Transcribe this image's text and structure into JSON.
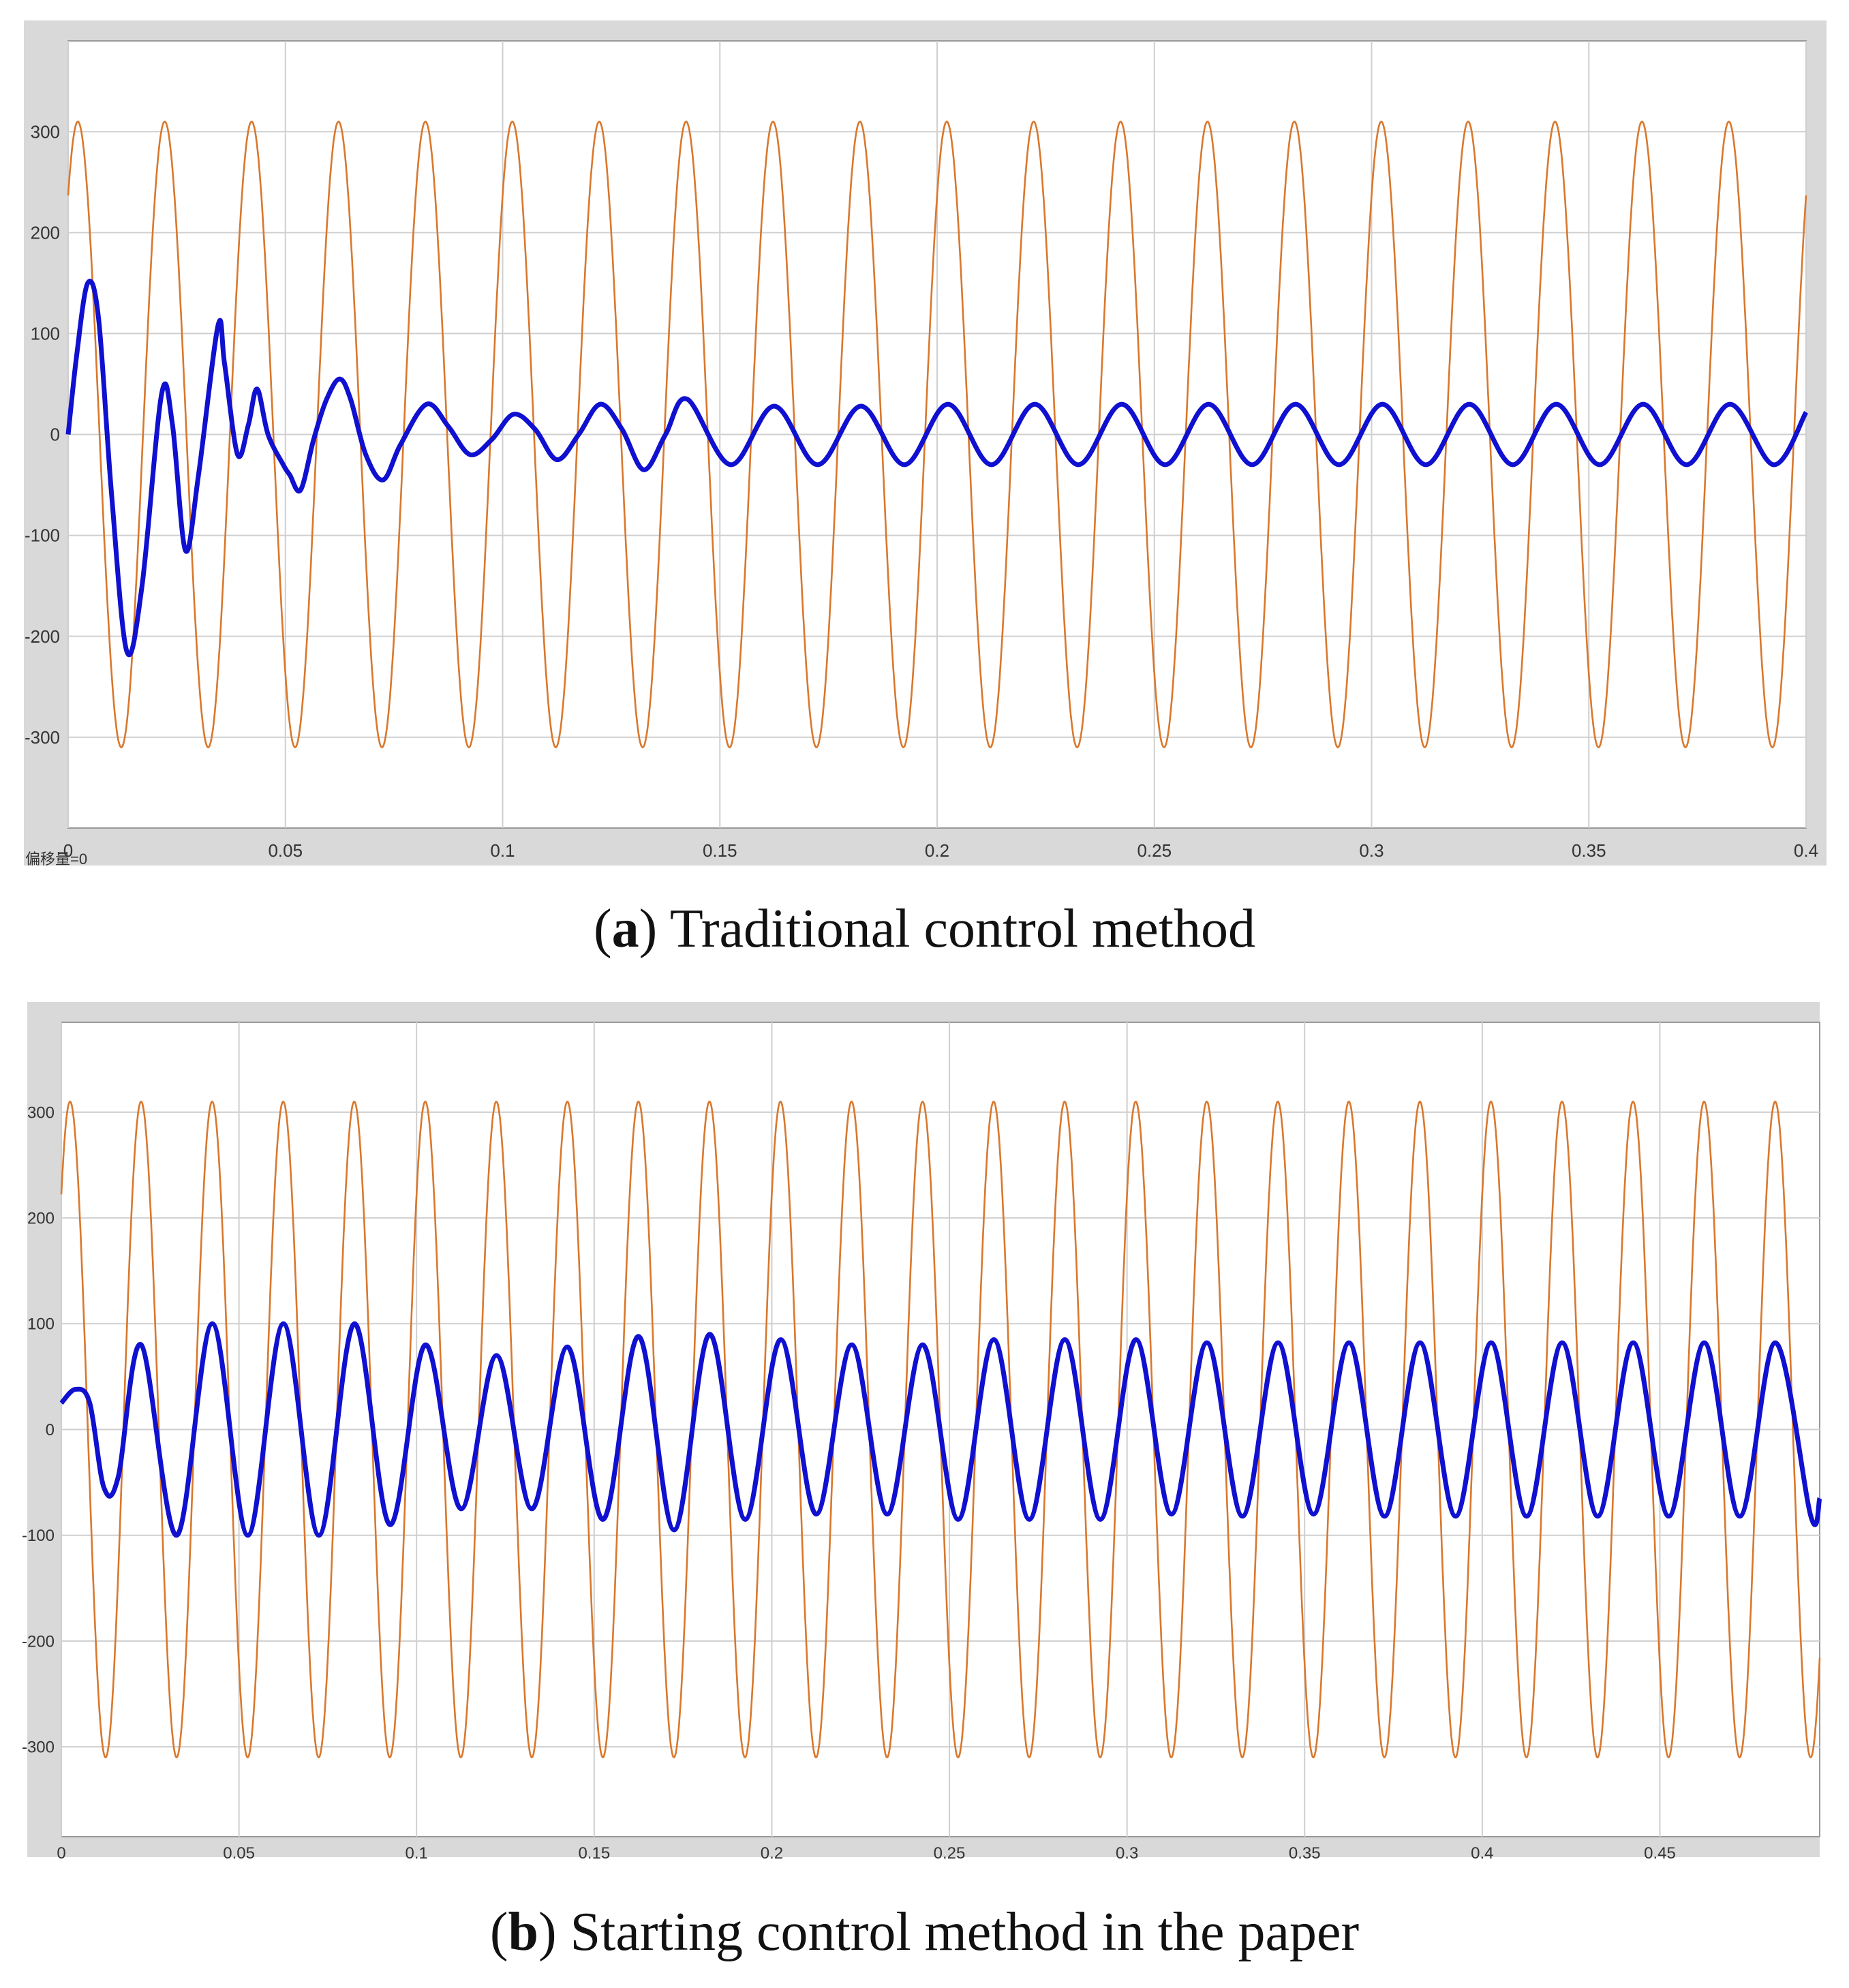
{
  "chart_data": [
    {
      "type": "line",
      "panel_label": "a",
      "caption": "Traditional control method",
      "corner_text": "偏移量=0",
      "xlim": [
        0,
        0.4
      ],
      "ylim": [
        -390,
        390
      ],
      "x_ticks": [
        0,
        0.05,
        0.1,
        0.15,
        0.2,
        0.25,
        0.3,
        0.35,
        0.4
      ],
      "x_tick_labels": [
        "0",
        "0.05",
        "0.1",
        "0.15",
        "0.2",
        "0.25",
        "0.3",
        "0.35",
        "0.4"
      ],
      "y_ticks": [
        300,
        200,
        100,
        0,
        -100,
        -200,
        -300
      ],
      "y_tick_labels": [
        "300",
        "200",
        "100",
        "0",
        "-100",
        "-200",
        "-300"
      ],
      "grid": true,
      "series": [
        {
          "color": "#d9782d",
          "description": "sinusoid, amplitude 310, frequency 50 Hz, initial phase 0.87 rad",
          "amplitude": 310,
          "frequency_hz": 50,
          "phase_rad": 0.87
        },
        {
          "color": "#1010d0",
          "x": [
            0,
            0.002,
            0.0045,
            0.007,
            0.01,
            0.0135,
            0.017,
            0.0215,
            0.024,
            0.027,
            0.03,
            0.0345,
            0.036,
            0.039,
            0.0415,
            0.0435,
            0.046,
            0.0495,
            0.051,
            0.0535,
            0.0565,
            0.0595,
            0.0625,
            0.065,
            0.0685,
            0.0725,
            0.0765,
            0.0825,
            0.0875,
            0.0925,
            0.0975,
            0.1025,
            0.1075,
            0.1125,
            0.1175,
            0.1225,
            0.1275,
            0.1325,
            0.1375,
            0.1425,
            0.1525,
            0.1625,
            0.1725,
            0.1825,
            0.1925,
            0.2025,
            0.2125,
            0.2225,
            0.2325,
            0.2425,
            0.2525,
            0.2625,
            0.2725,
            0.2825,
            0.2925,
            0.3025,
            0.3125,
            0.3225,
            0.3325,
            0.3425,
            0.3525,
            0.3625,
            0.3725,
            0.3825,
            0.3925,
            0.4
          ],
          "y": [
            0,
            80,
            150,
            115,
            -60,
            -215,
            -150,
            40,
            10,
            -115,
            -40,
            108,
            70,
            -20,
            10,
            45,
            0,
            -30,
            -40,
            -55,
            -5,
            35,
            55,
            35,
            -20,
            -45,
            -10,
            30,
            8,
            -20,
            -5,
            20,
            5,
            -25,
            0,
            30,
            5,
            -35,
            0,
            35,
            -30,
            28,
            -30,
            28,
            -30,
            30,
            -30,
            30,
            -30,
            30,
            -30,
            30,
            -30,
            30,
            -30,
            30,
            -30,
            30,
            -30,
            30,
            -30,
            30,
            -30,
            30,
            -30,
            22
          ]
        }
      ]
    },
    {
      "type": "line",
      "panel_label": "b",
      "caption": "Starting control method in the paper",
      "xlim": [
        0,
        0.495
      ],
      "ylim": [
        -385,
        385
      ],
      "x_ticks": [
        0,
        0.05,
        0.1,
        0.15,
        0.2,
        0.25,
        0.3,
        0.35,
        0.4,
        0.45
      ],
      "x_tick_labels": [
        "0",
        "0.05",
        "0.1",
        "0.15",
        "0.2",
        "0.25",
        "0.3",
        "0.35",
        "0.4",
        "0.45"
      ],
      "y_ticks": [
        300,
        200,
        100,
        0,
        -100,
        -200,
        -300
      ],
      "y_tick_labels": [
        "300",
        "200",
        "100",
        "0",
        "-100",
        "-200",
        "-300"
      ],
      "grid": true,
      "series": [
        {
          "color": "#d9782d",
          "description": "sinusoid, amplitude 310, frequency 50 Hz, initial phase 0.8 rad",
          "amplitude": 310,
          "frequency_hz": 50,
          "phase_rad": 0.8
        },
        {
          "color": "#1010d0",
          "x": [
            0,
            0.004,
            0.008,
            0.012,
            0.016,
            0.0225,
            0.0325,
            0.0425,
            0.0525,
            0.0625,
            0.0725,
            0.0825,
            0.0925,
            0.1025,
            0.1125,
            0.1225,
            0.1325,
            0.1425,
            0.1525,
            0.1625,
            0.1725,
            0.1825,
            0.1925,
            0.2025,
            0.2125,
            0.2225,
            0.2325,
            0.2425,
            0.2525,
            0.2625,
            0.2725,
            0.2825,
            0.2925,
            0.3025,
            0.3125,
            0.3225,
            0.3325,
            0.3425,
            0.3525,
            0.3625,
            0.3725,
            0.3825,
            0.3925,
            0.4025,
            0.4125,
            0.4225,
            0.4325,
            0.4425,
            0.4525,
            0.4625,
            0.4725,
            0.4825,
            0.4925,
            0.495
          ],
          "y": [
            25,
            38,
            25,
            -55,
            -45,
            80,
            -100,
            100,
            -100,
            100,
            -100,
            100,
            -90,
            80,
            -75,
            70,
            -75,
            78,
            -85,
            88,
            -95,
            90,
            -85,
            85,
            -80,
            80,
            -80,
            80,
            -85,
            85,
            -85,
            85,
            -85,
            85,
            -80,
            82,
            -82,
            82,
            -80,
            82,
            -82,
            82,
            -82,
            82,
            -82,
            82,
            -82,
            82,
            -82,
            82,
            -82,
            82,
            -82,
            -65
          ]
        }
      ]
    }
  ]
}
